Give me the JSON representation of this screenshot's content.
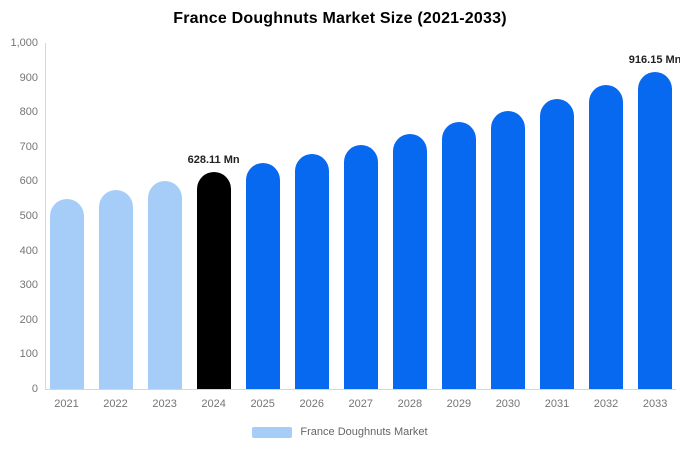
{
  "title": "France Doughnuts Market Size (2021-2033)",
  "legend": {
    "label": "France Doughnuts Market",
    "swatch_color": "#A5CDF7"
  },
  "colors": {
    "background": "#FFFFFF",
    "title_text": "#000000",
    "axis_text": "#757575",
    "axis_line": "#D6D6D6",
    "data_label_text": "#222222",
    "bar_light_blue": "#A5CDF7",
    "bar_blue": "#0768F0",
    "bar_black": "#000000"
  },
  "chart_data": {
    "type": "bar",
    "title": "France Doughnuts Market Size (2021-2033)",
    "unit": "Mn",
    "categories": [
      "2021",
      "2022",
      "2023",
      "2024",
      "2025",
      "2026",
      "2027",
      "2028",
      "2029",
      "2030",
      "2031",
      "2032",
      "2033"
    ],
    "values": [
      550,
      575,
      600,
      628.11,
      652,
      680,
      706,
      737,
      772,
      804,
      837,
      878,
      916.15
    ],
    "bar_colors": [
      "#A5CDF7",
      "#A5CDF7",
      "#A5CDF7",
      "#000000",
      "#0768F0",
      "#0768F0",
      "#0768F0",
      "#0768F0",
      "#0768F0",
      "#0768F0",
      "#0768F0",
      "#0768F0",
      "#0768F0"
    ],
    "data_labels": [
      {
        "index": 3,
        "text": "628.11 Mn"
      },
      {
        "index": 12,
        "text": "916.15 Mn"
      }
    ],
    "xlabel": "",
    "ylabel": "",
    "ylim": [
      0,
      1000
    ],
    "ytick_interval": 100,
    "ytick_labels": [
      "0",
      "100",
      "200",
      "300",
      "400",
      "500",
      "600",
      "700",
      "800",
      "900",
      "1,000"
    ],
    "grid": false,
    "legend_position": "bottom",
    "legend_entries": [
      "France Doughnuts Market"
    ]
  }
}
